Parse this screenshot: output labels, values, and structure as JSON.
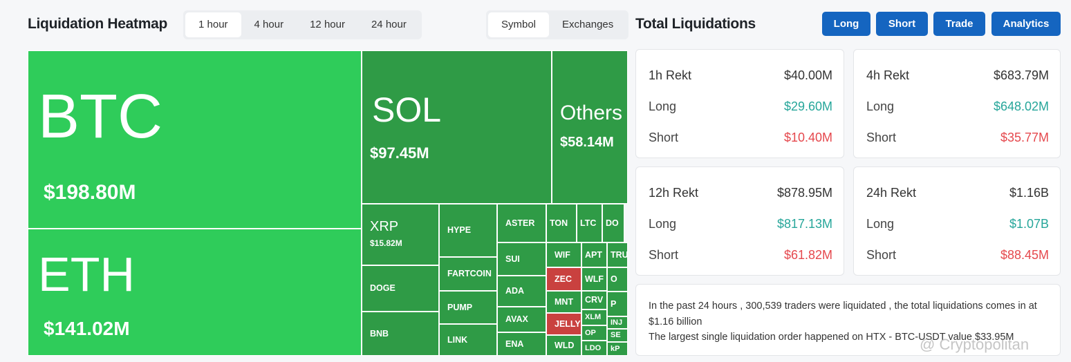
{
  "header": {
    "title": "Liquidation Heatmap",
    "time_tabs": [
      "1 hour",
      "4 hour",
      "12 hour",
      "24 hour"
    ],
    "view_tabs": [
      "Symbol",
      "Exchanges"
    ]
  },
  "heatmap": {
    "cells": [
      {
        "label": "BTC",
        "value": "$198.80M"
      },
      {
        "label": "ETH",
        "value": "$141.02M"
      },
      {
        "label": "SOL",
        "value": "$97.45M"
      },
      {
        "label": "Others",
        "value": "$58.14M"
      },
      {
        "label": "XRP",
        "value": "$15.82M"
      },
      {
        "label": "DOGE"
      },
      {
        "label": "BNB"
      },
      {
        "label": "HYPE"
      },
      {
        "label": "FARTCOIN"
      },
      {
        "label": "PUMP"
      },
      {
        "label": "LINK"
      },
      {
        "label": "ASTER"
      },
      {
        "label": "SUI"
      },
      {
        "label": "ADA"
      },
      {
        "label": "AVAX"
      },
      {
        "label": "ENA"
      },
      {
        "label": "TON"
      },
      {
        "label": "LTC"
      },
      {
        "label": "DO"
      },
      {
        "label": "WIF"
      },
      {
        "label": "APT"
      },
      {
        "label": "TRU"
      },
      {
        "label": "ZEC"
      },
      {
        "label": "WLF"
      },
      {
        "label": "O"
      },
      {
        "label": "MNT"
      },
      {
        "label": "CRV"
      },
      {
        "label": "P"
      },
      {
        "label": "JELLY"
      },
      {
        "label": "XLM"
      },
      {
        "label": "INJ"
      },
      {
        "label": "WLD"
      },
      {
        "label": "OP"
      },
      {
        "label": "SE"
      },
      {
        "label": "LDO"
      },
      {
        "label": "kP"
      }
    ]
  },
  "summary": {
    "title": "Total Liquidations",
    "buttons": [
      "Long",
      "Short",
      "Trade",
      "Analytics"
    ],
    "cards": [
      {
        "title": "1h Rekt",
        "total": "$40.00M",
        "long_label": "Long",
        "long": "$29.60M",
        "short_label": "Short",
        "short": "$10.40M"
      },
      {
        "title": "4h Rekt",
        "total": "$683.79M",
        "long_label": "Long",
        "long": "$648.02M",
        "short_label": "Short",
        "short": "$35.77M"
      },
      {
        "title": "12h Rekt",
        "total": "$878.95M",
        "long_label": "Long",
        "long": "$817.13M",
        "short_label": "Short",
        "short": "$61.82M"
      },
      {
        "title": "24h Rekt",
        "total": "$1.16B",
        "long_label": "Long",
        "long": "$1.07B",
        "short_label": "Short",
        "short": "$88.45M"
      }
    ],
    "note": {
      "lines": [
        "In the past 24 hours , 300,539 traders were liquidated , the total liquidations comes in at $1.16 billion",
        "The largest single liquidation order happened on HTX - BTC-USDT value $33.95M"
      ]
    }
  },
  "watermark": "@ Cryptopolitan"
}
